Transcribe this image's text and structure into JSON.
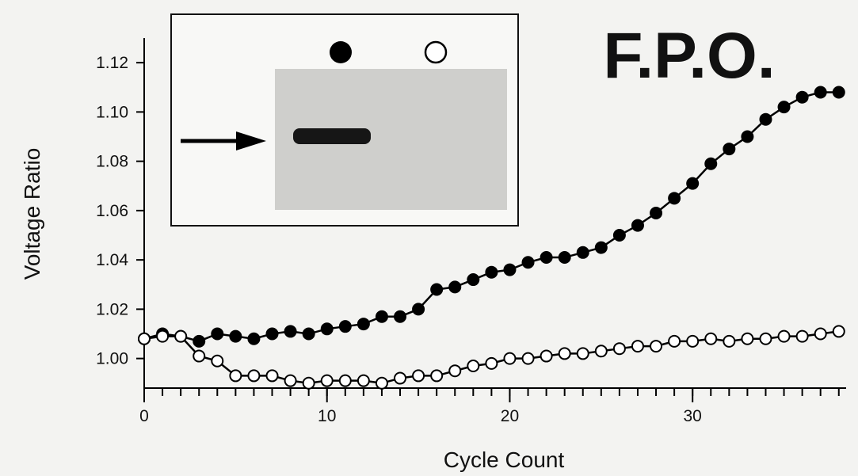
{
  "chart_data": {
    "type": "line",
    "annotation": "F.P.O.",
    "xlabel": "Cycle Count",
    "ylabel": "Voltage Ratio",
    "x": [
      0,
      1,
      2,
      3,
      4,
      5,
      6,
      7,
      8,
      9,
      10,
      11,
      12,
      13,
      14,
      15,
      16,
      17,
      18,
      19,
      20,
      21,
      22,
      23,
      24,
      25,
      26,
      27,
      28,
      29,
      30,
      31,
      32,
      33,
      34,
      35,
      36,
      37,
      38
    ],
    "series": [
      {
        "color": "#000000",
        "marker": "filled",
        "values": [
          1.008,
          1.01,
          1.009,
          1.007,
          1.01,
          1.009,
          1.008,
          1.01,
          1.011,
          1.01,
          1.012,
          1.013,
          1.014,
          1.017,
          1.017,
          1.02,
          1.028,
          1.029,
          1.032,
          1.035,
          1.036,
          1.039,
          1.041,
          1.041,
          1.043,
          1.045,
          1.05,
          1.054,
          1.059,
          1.065,
          1.071,
          1.079,
          1.085,
          1.09,
          1.097,
          1.102,
          1.106,
          1.108,
          1.108
        ]
      },
      {
        "color": "#000000",
        "marker": "open",
        "values": [
          1.008,
          1.009,
          1.009,
          1.001,
          0.999,
          0.993,
          0.993,
          0.993,
          0.991,
          0.99,
          0.991,
          0.991,
          0.991,
          0.99,
          0.992,
          0.993,
          0.993,
          0.995,
          0.997,
          0.998,
          1.0,
          1.0,
          1.001,
          1.002,
          1.002,
          1.003,
          1.004,
          1.005,
          1.005,
          1.007,
          1.007,
          1.008,
          1.007,
          1.008,
          1.008,
          1.009,
          1.009,
          1.01,
          1.011
        ]
      }
    ],
    "xlim": [
      0,
      38.4
    ],
    "ylim": [
      0.988,
      1.13
    ],
    "xticks": [
      0,
      10,
      20,
      30
    ],
    "yticks": [
      {
        "value": 1.0,
        "label": "1.00"
      },
      {
        "value": 1.02,
        "label": "1.02"
      },
      {
        "value": 1.04,
        "label": "1.04"
      },
      {
        "value": 1.06,
        "label": "1.06"
      },
      {
        "value": 1.08,
        "label": "1.08"
      },
      {
        "value": 1.1,
        "label": "1.10"
      },
      {
        "value": 1.12,
        "label": "1.12"
      }
    ]
  }
}
